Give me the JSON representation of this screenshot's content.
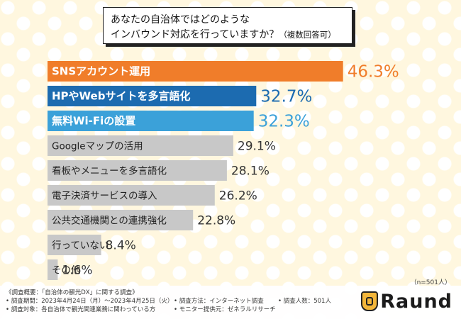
{
  "question": {
    "line1": "あなたの自治体ではどのような",
    "line2": "インバウンド対応を行っていますか？",
    "line2_suffix": "（複数回答可）"
  },
  "chart_data": {
    "type": "bar",
    "orientation": "horizontal",
    "categories": [
      "SNSアカウント運用",
      "HPやWebサイトを多言語化",
      "無料Wi-Fiの設置",
      "Googleマップの活用",
      "看板やメニューを多言語化",
      "電子決済サービスの導入",
      "公共交通機関との連携強化",
      "行っていない",
      "その他"
    ],
    "values": [
      46.3,
      32.7,
      32.3,
      29.1,
      28.1,
      26.2,
      22.8,
      8.4,
      1.6
    ],
    "value_labels": [
      "46.3%",
      "32.7%",
      "32.3%",
      "29.1%",
      "28.1%",
      "26.2%",
      "22.8%",
      "8.4%",
      "1.6%"
    ],
    "colors": [
      "#f07d2a",
      "#1c6bb0",
      "#3ba1d9",
      "#c8c8c8",
      "#c8c8c8",
      "#c8c8c8",
      "#c8c8c8",
      "#c8c8c8",
      "#c8c8c8"
    ],
    "xlim": [
      0,
      50
    ],
    "title": "",
    "xlabel": "",
    "ylabel": ""
  },
  "sample_note": "（n=501人）",
  "footer": {
    "overview": "《調査概要：「自治体の観光DX」に関する調査》",
    "period": "• 調査期間：2023年4月24日（月）〜2023年4月25日（火）",
    "target": "• 調査対象：各自治体で観光関連業務に関わっている方",
    "method": "• 調査方法：インターネット調査",
    "provider": "• モニター提供元：ゼネラルリサーチ",
    "count": "• 調査人数：501人"
  },
  "brand": {
    "name": "Raund",
    "accent": "#f3b63a"
  }
}
